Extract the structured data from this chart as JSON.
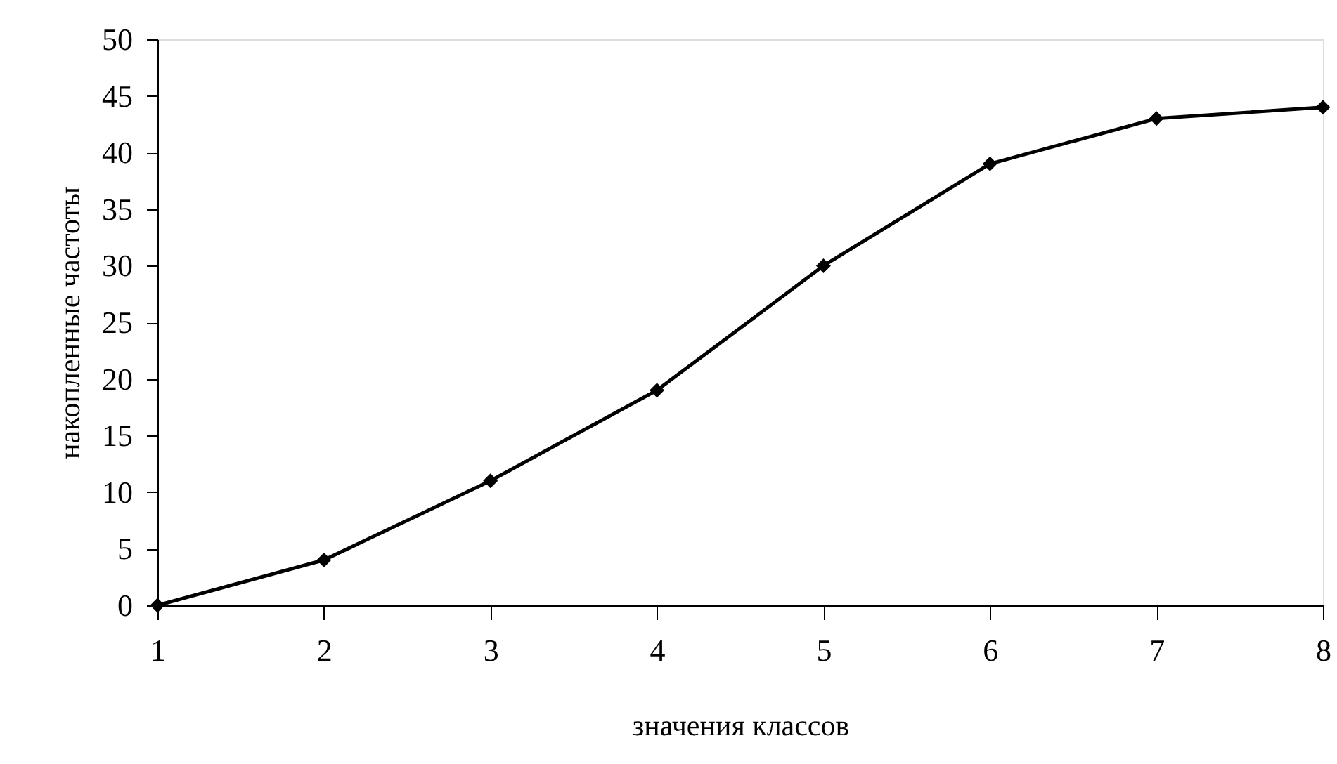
{
  "chart_data": {
    "type": "line",
    "xlabel": "значения  классов",
    "ylabel": "накопленные частоты",
    "x": [
      1,
      2,
      3,
      4,
      5,
      6,
      7,
      8
    ],
    "series": [
      {
        "color": "#000000",
        "values": [
          0,
          4,
          11,
          19,
          30,
          39,
          43,
          44
        ]
      }
    ],
    "xlim": [
      1,
      8
    ],
    "xticks": [
      1,
      2,
      3,
      4,
      5,
      6,
      7,
      8
    ],
    "ylim": [
      0,
      50
    ],
    "yticks": [
      0,
      5,
      10,
      15,
      20,
      25,
      30,
      35,
      40,
      45,
      50
    ],
    "grid": false,
    "marker": "diamond",
    "line_style": "solid"
  }
}
